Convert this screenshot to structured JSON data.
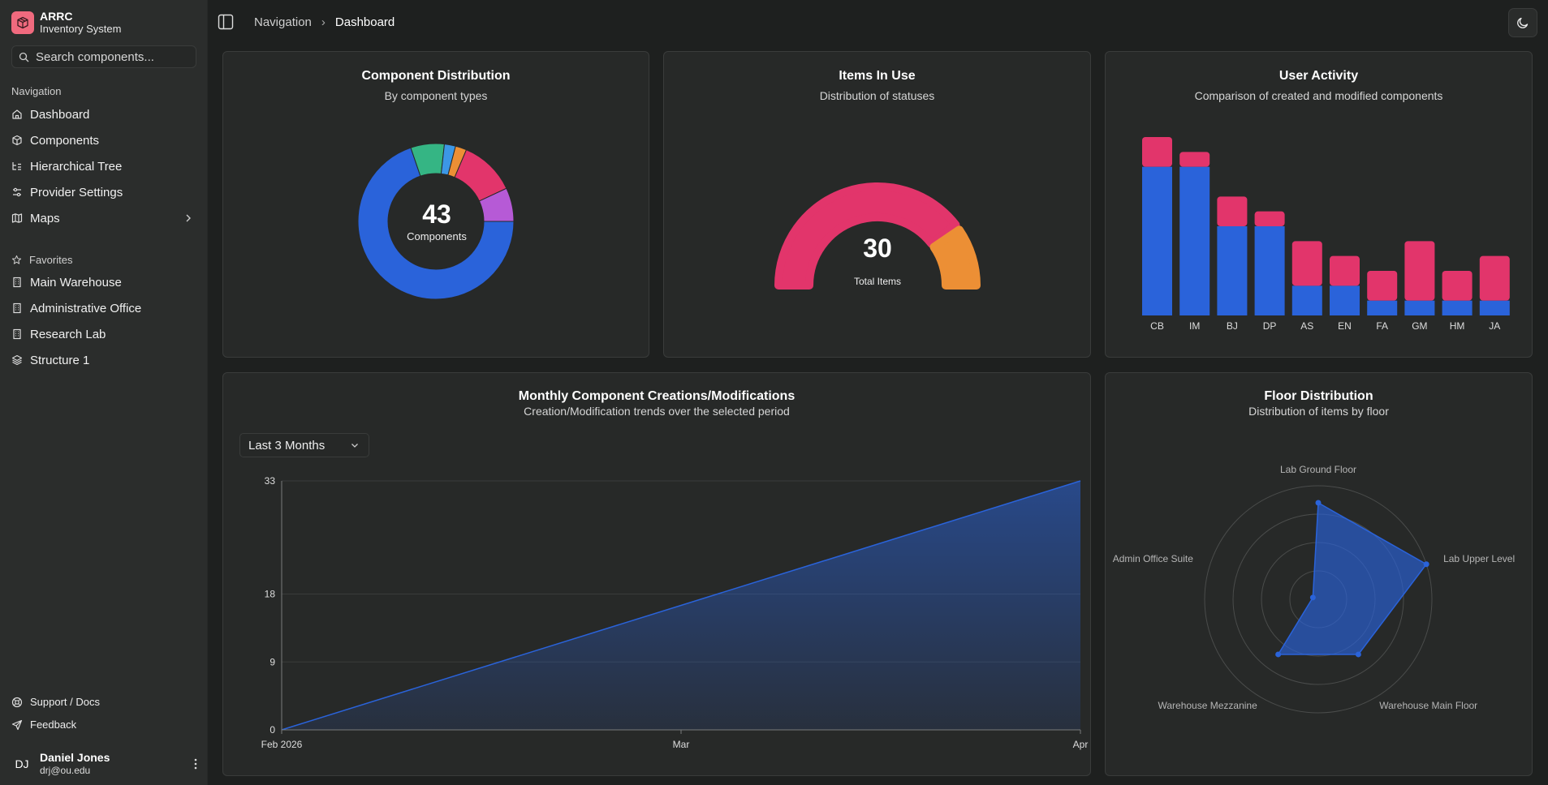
{
  "app": {
    "title": "ARRC",
    "subtitle": "Inventory System"
  },
  "search": {
    "placeholder": "Search components..."
  },
  "nav": {
    "group_label": "Navigation",
    "items": [
      {
        "label": "Dashboard",
        "icon": "home-icon"
      },
      {
        "label": "Components",
        "icon": "box-icon"
      },
      {
        "label": "Hierarchical Tree",
        "icon": "tree-icon"
      },
      {
        "label": "Provider Settings",
        "icon": "sliders-icon"
      },
      {
        "label": "Maps",
        "icon": "map-icon"
      }
    ]
  },
  "favorites": {
    "group_label": "Favorites",
    "items": [
      {
        "label": "Main Warehouse",
        "icon": "building-icon"
      },
      {
        "label": "Administrative Office",
        "icon": "building-icon"
      },
      {
        "label": "Research Lab",
        "icon": "building-icon"
      },
      {
        "label": "Structure 1",
        "icon": "structure-icon"
      }
    ]
  },
  "footer_links": {
    "support": "Support / Docs",
    "feedback": "Feedback"
  },
  "user": {
    "initials": "DJ",
    "name": "Daniel Jones",
    "email": "drj@ou.edu"
  },
  "breadcrumb": {
    "parent": "Navigation",
    "current": "Dashboard"
  },
  "colors": {
    "blue": "#2a63da",
    "pink": "#e2356b",
    "orange": "#ec8f35",
    "green": "#35b584",
    "purple": "#b65ad6",
    "lightblue": "#3c97e6"
  },
  "cards": {
    "distribution": {
      "title": "Component Distribution",
      "subtitle": "By component types",
      "center_value": "43",
      "center_label": "Components"
    },
    "in_use": {
      "title": "Items In Use",
      "subtitle": "Distribution of statuses",
      "center_value": "30",
      "center_label": "Total Items"
    },
    "activity": {
      "title": "User Activity",
      "subtitle": "Comparison of created and modified components"
    },
    "monthly": {
      "title": "Monthly Component Creations/Modifications",
      "subtitle": "Creation/Modification trends over the selected period",
      "range_select": "Last 3 Months"
    },
    "floor": {
      "title": "Floor Distribution",
      "subtitle": "Distribution of items by floor"
    }
  },
  "chart_data": [
    {
      "type": "pie",
      "title": "Component Distribution",
      "total": 43,
      "values": [
        30,
        3,
        1,
        1,
        5,
        3
      ],
      "colors": [
        "#2a63da",
        "#35b584",
        "#3c97e6",
        "#ec8f35",
        "#e2356b",
        "#b65ad6"
      ]
    },
    {
      "type": "pie",
      "title": "Items In Use",
      "total": 30,
      "values": [
        24,
        6
      ],
      "colors": [
        "#e2356b",
        "#ec8f35"
      ]
    },
    {
      "type": "bar",
      "title": "User Activity",
      "categories": [
        "CB",
        "IM",
        "BJ",
        "DP",
        "AS",
        "EN",
        "FA",
        "GM",
        "HM",
        "JA"
      ],
      "series": [
        {
          "values": [
            10,
            10,
            6,
            6,
            2,
            2,
            1,
            1,
            1,
            1
          ],
          "color": "#2a63da"
        },
        {
          "values": [
            2,
            1,
            2,
            1,
            3,
            2,
            2,
            4,
            2,
            3
          ],
          "color": "#e2356b"
        }
      ],
      "ylim": [
        0,
        12
      ]
    },
    {
      "type": "area",
      "title": "Monthly Component Creations/Modifications",
      "x": [
        "Feb 2026",
        "Apr"
      ],
      "x_ticks": [
        "Feb 2026",
        "Mar",
        "Apr"
      ],
      "y": [
        0,
        33
      ],
      "y_ticks": [
        0,
        9,
        18,
        33
      ],
      "ylim": [
        0,
        33
      ],
      "color": "#2a63da"
    },
    {
      "type": "radar",
      "title": "Floor Distribution",
      "axes": [
        "Lab Ground Floor",
        "Lab Upper Level",
        "Warehouse Main Floor",
        "Warehouse Mezzanine",
        "Admin Office Suite"
      ],
      "values": [
        8.5,
        10,
        6,
        6,
        0.5
      ],
      "max": 10,
      "color": "#2a63da"
    }
  ]
}
